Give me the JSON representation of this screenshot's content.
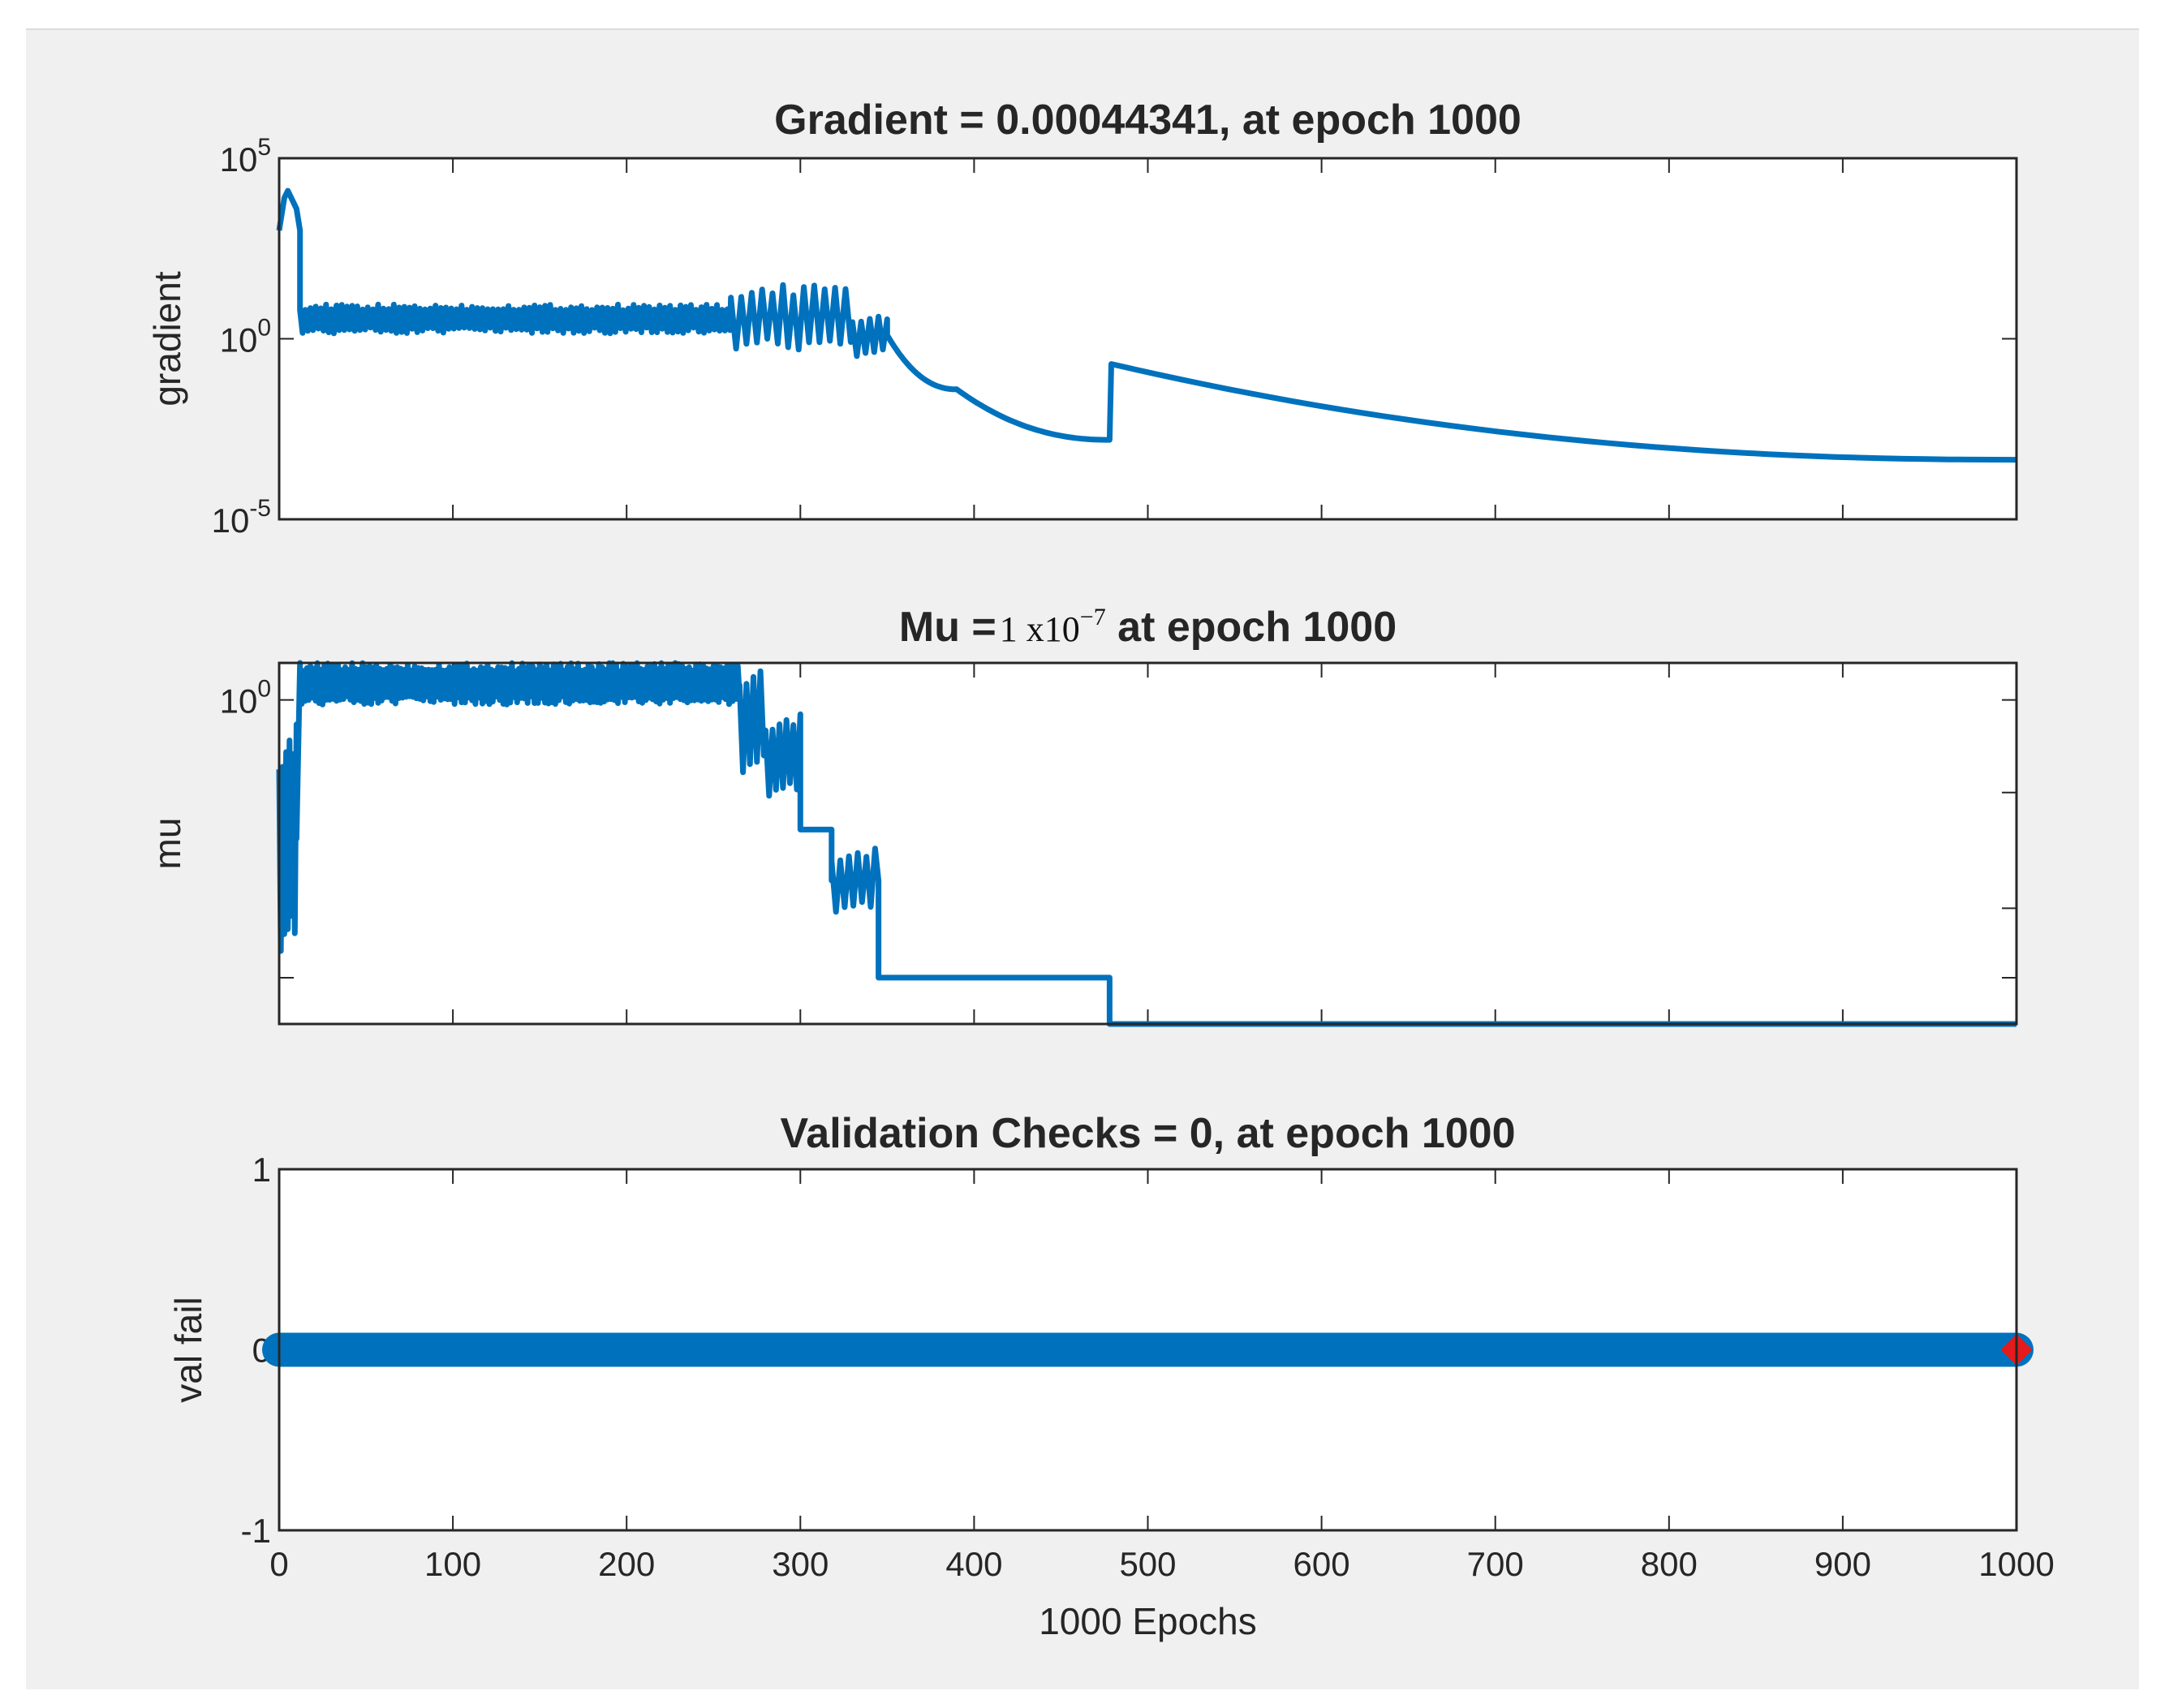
{
  "chart_data": [
    {
      "type": "line",
      "title": "Gradient = 0.00044341, at epoch 1000",
      "ylabel": "gradient",
      "xlabel": "",
      "yscale": "log",
      "xlim": [
        0,
        1000
      ],
      "ylim_exp": [
        -5,
        5
      ],
      "xticks": [
        0,
        100,
        200,
        300,
        400,
        500,
        600,
        700,
        800,
        900,
        1000
      ],
      "yticks": [
        {
          "exp": -5,
          "base": "10",
          "sup": "-5"
        },
        {
          "exp": 0,
          "base": "10",
          "sup": "0"
        },
        {
          "exp": 5,
          "base": "10",
          "sup": "5"
        }
      ],
      "color": "#0072bd",
      "series": [
        {
          "name": "gradient",
          "regions": [
            {
              "kind": "points",
              "points": [
                [
                  0,
                  3.0
                ],
                [
                  3,
                  3.9
                ],
                [
                  5,
                  4.1
                ],
                [
                  8,
                  3.8
                ],
                [
                  10,
                  3.6
                ],
                [
                  12,
                  3.0
                ]
              ]
            },
            {
              "kind": "osc",
              "x0": 12,
              "x1": 260,
              "base": 0.55,
              "amp": 0.4,
              "period": 3
            },
            {
              "kind": "osc",
              "x0": 260,
              "x1": 330,
              "base": 0.6,
              "amp": 0.9,
              "period": 6
            },
            {
              "kind": "osc",
              "x0": 330,
              "x1": 350,
              "base": 0.1,
              "amp": 0.6,
              "period": 5
            },
            {
              "kind": "decay",
              "x0": 350,
              "x1": 390,
              "y0": 0.1,
              "y1": -1.4
            },
            {
              "kind": "decay",
              "x0": 390,
              "x1": 478,
              "y0": -1.4,
              "y1": -2.8
            },
            {
              "kind": "points",
              "points": [
                [
                  478,
                  -2.8
                ],
                [
                  479,
                  -0.7
                ]
              ]
            },
            {
              "kind": "decay",
              "x0": 479,
              "x1": 1000,
              "y0": -0.7,
              "y1": -3.35
            }
          ]
        }
      ]
    },
    {
      "type": "line",
      "title": "Mu =",
      "title_value": "1 x10",
      "title_exponent": "−7",
      "title_suffix": " at epoch 1000",
      "ylabel": "mu",
      "xlabel": "",
      "yscale": "log",
      "xlim": [
        0,
        1000
      ],
      "ylim_exp": [
        -7,
        0.8
      ],
      "xticks": [
        0,
        100,
        200,
        300,
        400,
        500,
        600,
        700,
        800,
        900,
        1000
      ],
      "yticks": [
        {
          "exp": 0,
          "base": "10",
          "sup": "0"
        }
      ],
      "color": "#0072bd",
      "series": [
        {
          "name": "mu",
          "regions": [
            {
              "kind": "osc",
              "x0": 0,
              "x1": 10,
              "base": -3,
              "amp": 2.5,
              "period": 2
            },
            {
              "kind": "points",
              "points": [
                [
                  10,
                  -3
                ],
                [
                  12,
                  0.8
                ]
              ]
            },
            {
              "kind": "osc",
              "x0": 12,
              "x1": 265,
              "base": 0.35,
              "amp": 0.45,
              "period": 2
            },
            {
              "kind": "osc",
              "x0": 265,
              "x1": 280,
              "base": -0.4,
              "amp": 1.2,
              "period": 4
            },
            {
              "kind": "osc",
              "x0": 280,
              "x1": 300,
              "base": -1.2,
              "amp": 0.9,
              "period": 4
            },
            {
              "kind": "points",
              "points": [
                [
                  300,
                  -1.5
                ],
                [
                  300,
                  -2.8
                ],
                [
                  318,
                  -2.8
                ],
                [
                  318,
                  -3.9
                ]
              ]
            },
            {
              "kind": "osc",
              "x0": 318,
              "x1": 345,
              "base": -3.9,
              "amp": 0.7,
              "period": 5
            },
            {
              "kind": "points",
              "points": [
                [
                  345,
                  -3.9
                ],
                [
                  345,
                  -6.0
                ],
                [
                  478,
                  -6.0
                ],
                [
                  478,
                  -7.0
                ],
                [
                  1000,
                  -7.0
                ]
              ]
            }
          ]
        }
      ]
    },
    {
      "type": "scatter",
      "title": "Validation Checks = 0, at epoch 1000",
      "ylabel": "val fail",
      "xlabel": "1000 Epochs",
      "yscale": "linear",
      "xlim": [
        0,
        1000
      ],
      "ylim": [
        -1,
        1
      ],
      "xticks": [
        0,
        100,
        200,
        300,
        400,
        500,
        600,
        700,
        800,
        900,
        1000
      ],
      "yticks": [
        {
          "value": 1,
          "label": "1"
        },
        {
          "value": 0,
          "label": "0"
        },
        {
          "value": -1,
          "label": "-1"
        }
      ],
      "color": "#0072bd",
      "series": [
        {
          "name": "val fail",
          "x_range": [
            0,
            1000
          ],
          "value": 0
        }
      ],
      "marker": {
        "x": 1000,
        "y": 0,
        "color": "#e41a1c"
      }
    }
  ]
}
